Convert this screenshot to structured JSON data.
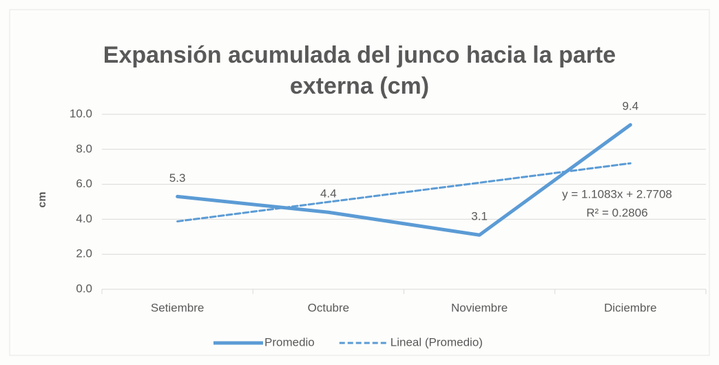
{
  "chart_data": {
    "type": "line",
    "title": "Expansión acumulada del junco hacia la parte externa (cm)",
    "y_label": "cm",
    "categories": [
      "Setiembre",
      "Octubre",
      "Noviembre",
      "Diciembre"
    ],
    "series": [
      {
        "name": "Promedio",
        "color": "#5b9bd5",
        "values": [
          5.3,
          4.4,
          3.1,
          9.4
        ]
      },
      {
        "name": "Lineal (Promedio)",
        "color": "#5b9bd5",
        "dashed": true,
        "values": [
          3.88,
          4.99,
          6.09,
          7.2
        ]
      }
    ],
    "annotations": [
      "y = 1.1083x + 2.7708",
      "R² = 0.2806"
    ],
    "ylim": [
      0,
      10
    ],
    "yticks": [
      {
        "value": 0,
        "label": "0.0"
      },
      {
        "value": 2,
        "label": "2.0"
      },
      {
        "value": 4,
        "label": "4.0"
      },
      {
        "value": 6,
        "label": "6.0"
      },
      {
        "value": 8,
        "label": "8.0"
      },
      {
        "value": 10,
        "label": "10.0"
      }
    ],
    "grid": true,
    "legend": "bottom",
    "data_labels_series": 0
  }
}
